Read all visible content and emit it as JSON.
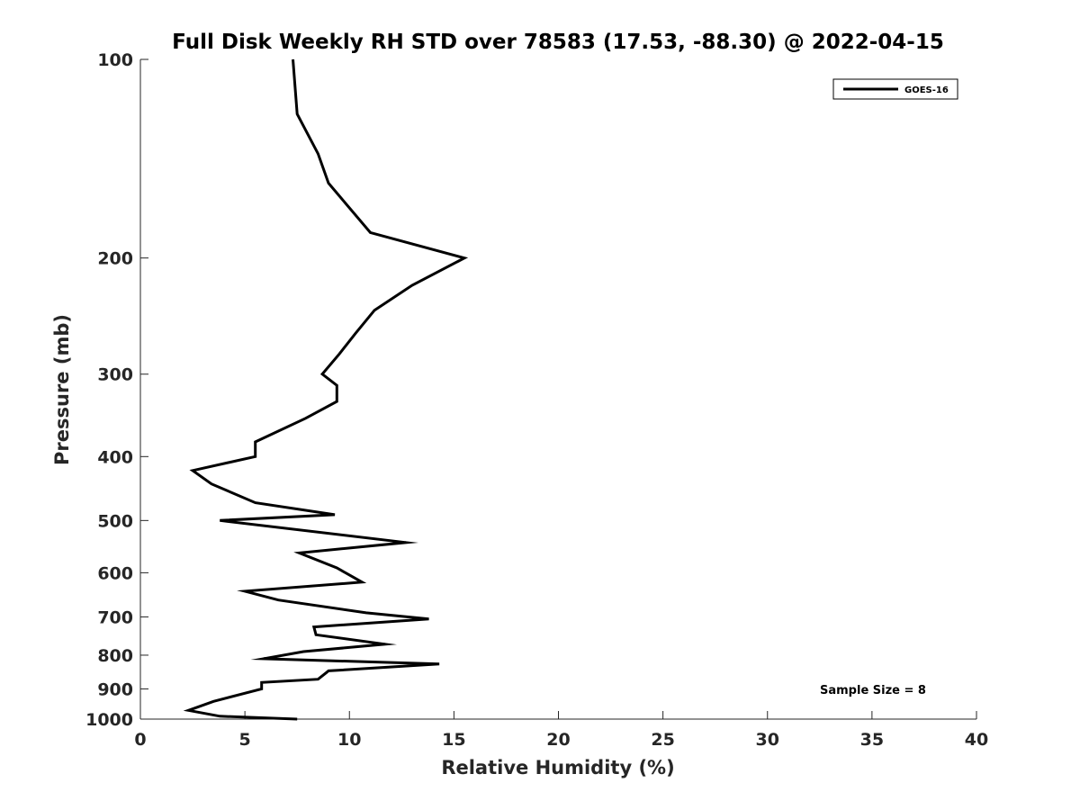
{
  "chart_data": {
    "type": "line",
    "title": "Full Disk Weekly RH STD over 78583 (17.53, -88.30) @ 2022-04-15",
    "xlabel": "Relative Humidity (%)",
    "ylabel": "Pressure (mb)",
    "xlim": [
      0,
      40
    ],
    "ylim": [
      100,
      1000
    ],
    "yscale": "log",
    "reverse_y": true,
    "x_ticks": [
      0,
      5,
      10,
      15,
      20,
      25,
      30,
      35,
      40
    ],
    "x_tick_labels": [
      "0",
      "5",
      "10",
      "15",
      "20",
      "25",
      "30",
      "35",
      "40"
    ],
    "y_ticks": [
      100,
      200,
      300,
      400,
      500,
      600,
      700,
      800,
      900,
      1000
    ],
    "y_tick_labels": [
      "100",
      "200",
      "300",
      "400",
      "500",
      "600",
      "700",
      "800",
      "900",
      "1000"
    ],
    "grid": false,
    "legend_position": "top-right",
    "series": [
      {
        "name": "GOES-16",
        "color": "#000000",
        "x": [
          7.3,
          7.5,
          8.5,
          9.0,
          11.0,
          15.5,
          13.0,
          11.2,
          10.3,
          9.5,
          8.7,
          9.4,
          9.4,
          7.9,
          5.5,
          5.5,
          2.5,
          3.4,
          5.5,
          9.3,
          3.8,
          12.7,
          7.6,
          9.4,
          10.6,
          5.0,
          6.6,
          10.8,
          13.8,
          8.3,
          8.4,
          11.7,
          7.8,
          5.9,
          14.3,
          9.0,
          8.9,
          8.5,
          5.8,
          5.8,
          3.5,
          2.3,
          3.8,
          7.5
        ],
        "y": [
          100,
          121,
          139,
          154,
          183,
          200,
          220,
          240,
          260,
          280,
          300,
          312,
          330,
          350,
          380,
          400,
          420,
          440,
          470,
          490,
          500,
          540,
          560,
          590,
          620,
          640,
          660,
          690,
          705,
          725,
          745,
          770,
          790,
          810,
          825,
          845,
          850,
          870,
          880,
          900,
          940,
          970,
          990,
          1000
        ]
      }
    ],
    "legend_entries": [
      "GOES-16"
    ],
    "annotations": [
      "Sample Size = 8"
    ]
  }
}
